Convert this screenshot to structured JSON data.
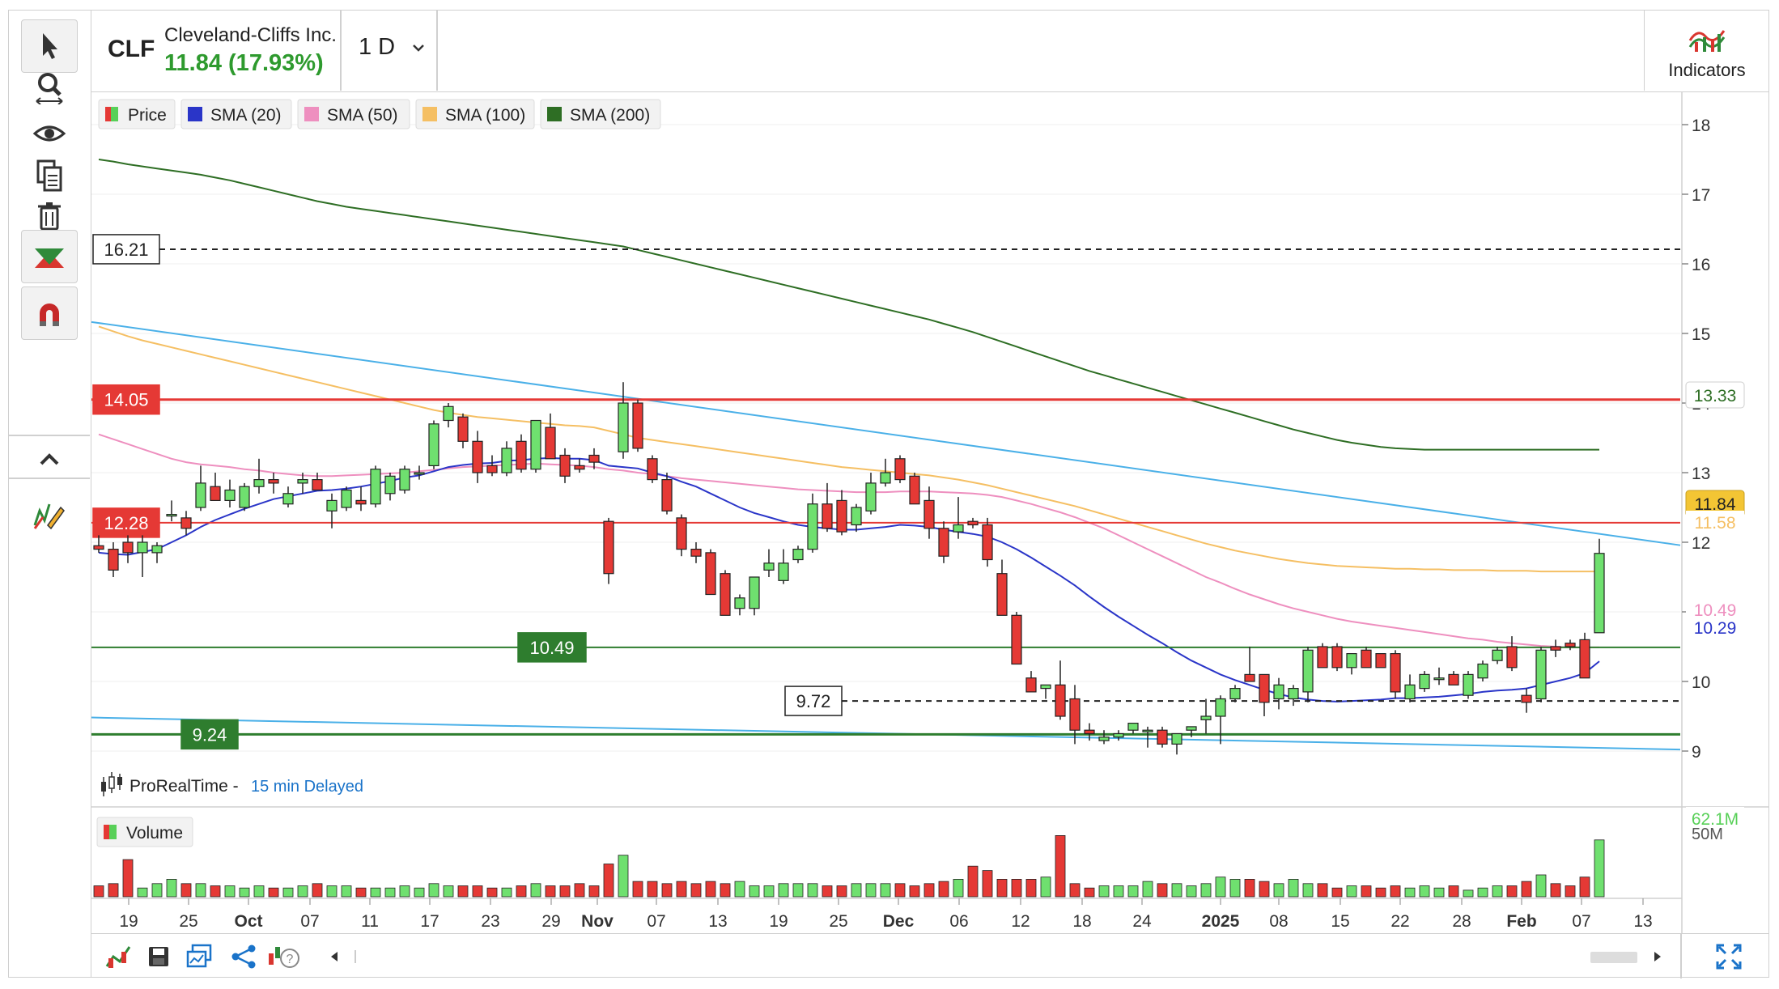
{
  "header": {
    "ticker": "CLF",
    "company": "Cleveland-Cliffs Inc.",
    "price_change": "11.84 (17.93%)",
    "interval": "1 D",
    "indicators_label": "Indicators"
  },
  "toolbar": {
    "icons": [
      "pointer-icon",
      "zoom-icon",
      "eye-icon",
      "copy-icon",
      "trash-icon",
      "drawing-tool-icon",
      "magnet-icon",
      "collapse-chevron-icon",
      "pencil-icon"
    ]
  },
  "bottom_bar": {
    "icons": [
      "chart-type-icon",
      "save-icon",
      "layout-icon",
      "share-icon",
      "help-icon",
      "scroll-left-icon",
      "scroll-right-icon",
      "fullscreen-icon"
    ]
  },
  "chart_data": {
    "type": "candlestick",
    "legend": [
      {
        "label": "Price",
        "color": "#e53935"
      },
      {
        "label": "SMA (20)",
        "color": "#2a35c8"
      },
      {
        "label": "SMA (50)",
        "color": "#ee8fbf"
      },
      {
        "label": "SMA (100)",
        "color": "#f5bf63"
      },
      {
        "label": "SMA (200)",
        "color": "#2e6e24"
      }
    ],
    "volume_label": "Volume",
    "source_label": "ProRealTime -",
    "delay_label": "15 min Delayed",
    "y_range": [
      8.5,
      18.5
    ],
    "y_ticks": [
      9,
      10,
      11,
      12,
      13,
      14,
      15,
      16,
      17,
      18
    ],
    "x_tick_labels": [
      "19",
      "25",
      "Oct",
      "07",
      "11",
      "17",
      "23",
      "29",
      "Nov",
      "07",
      "13",
      "19",
      "25",
      "Dec",
      "06",
      "12",
      "18",
      "24",
      "2025",
      "08",
      "15",
      "22",
      "28",
      "Feb",
      "07",
      "13"
    ],
    "right_axis_badges": [
      {
        "text": "13.33",
        "value": 13.33,
        "color": "#2e6e24",
        "style": "outline"
      },
      {
        "text": "11.84",
        "value": 11.84,
        "color": "#f3c534",
        "style": "fill"
      },
      {
        "text": "11.58",
        "value": 11.58,
        "color": "#f5bf63",
        "style": "text"
      },
      {
        "text": "10.49",
        "value": 10.49,
        "color": "#ee8fbf",
        "style": "text"
      },
      {
        "text": "10.29",
        "value": 10.29,
        "color": "#2a35c8",
        "style": "text"
      },
      {
        "text": "62.1M",
        "value": 62.1,
        "color": "#58d058",
        "style": "text"
      }
    ],
    "volume_axis_label": "50M",
    "levels": [
      {
        "value": 16.21,
        "label": "16.21",
        "style": "dashed",
        "color": "#222222"
      },
      {
        "value": 14.05,
        "label": "14.05",
        "style": "solid",
        "color": "#e53935"
      },
      {
        "value": 12.28,
        "label": "12.28",
        "style": "solid",
        "color": "#e53935"
      },
      {
        "value": 10.49,
        "label": "10.49",
        "style": "solid",
        "color": "#2e7d2e"
      },
      {
        "value": 9.72,
        "label": "9.72",
        "style": "dashed",
        "color": "#222222"
      },
      {
        "value": 9.24,
        "label": "9.24",
        "style": "solid",
        "color": "#2e7d2e"
      }
    ],
    "trendlines": [
      {
        "from": [
          0,
          15.15
        ],
        "to": [
          102,
          12.15
        ],
        "color": "#4ab0e8"
      },
      {
        "from": [
          0,
          9.48
        ],
        "to": [
          102,
          9.05
        ],
        "color": "#4ab0e8"
      }
    ],
    "candles": [
      [
        11.95,
        12.1,
        11.85,
        11.9
      ],
      [
        11.9,
        12.0,
        11.5,
        11.6
      ],
      [
        12.0,
        12.1,
        11.7,
        11.85
      ],
      [
        11.85,
        12.1,
        11.5,
        12.0
      ],
      [
        11.85,
        12.0,
        11.7,
        11.95
      ],
      [
        12.4,
        12.6,
        12.3,
        12.4
      ],
      [
        12.35,
        12.45,
        12.1,
        12.2
      ],
      [
        12.5,
        13.1,
        12.45,
        12.85
      ],
      [
        12.8,
        13.0,
        12.6,
        12.6
      ],
      [
        12.6,
        12.9,
        12.5,
        12.75
      ],
      [
        12.5,
        12.85,
        12.45,
        12.8
      ],
      [
        12.8,
        13.2,
        12.7,
        12.9
      ],
      [
        12.9,
        13.0,
        12.7,
        12.85
      ],
      [
        12.55,
        12.8,
        12.5,
        12.7
      ],
      [
        12.85,
        13.0,
        12.7,
        12.9
      ],
      [
        12.9,
        13.0,
        12.75,
        12.75
      ],
      [
        12.45,
        12.7,
        12.2,
        12.6
      ],
      [
        12.5,
        12.8,
        12.45,
        12.75
      ],
      [
        12.6,
        12.8,
        12.45,
        12.55
      ],
      [
        12.55,
        13.1,
        12.5,
        13.05
      ],
      [
        12.7,
        13.0,
        12.6,
        12.95
      ],
      [
        12.75,
        13.1,
        12.7,
        13.05
      ],
      [
        13.0,
        13.1,
        12.9,
        13.0
      ],
      [
        13.1,
        13.75,
        13.05,
        13.7
      ],
      [
        13.75,
        14.0,
        13.65,
        13.95
      ],
      [
        13.8,
        13.85,
        13.35,
        13.45
      ],
      [
        13.45,
        13.6,
        12.85,
        13.0
      ],
      [
        13.1,
        13.25,
        12.95,
        13.0
      ],
      [
        13.0,
        13.45,
        12.95,
        13.35
      ],
      [
        13.45,
        13.55,
        13.0,
        13.05
      ],
      [
        13.05,
        13.75,
        13.0,
        13.75
      ],
      [
        13.65,
        13.85,
        13.2,
        13.2
      ],
      [
        13.25,
        13.35,
        12.85,
        12.95
      ],
      [
        13.1,
        13.2,
        13.0,
        13.05
      ],
      [
        13.25,
        13.35,
        13.05,
        13.15
      ],
      [
        12.3,
        12.35,
        11.4,
        11.55
      ],
      [
        13.3,
        14.3,
        13.2,
        14.0
      ],
      [
        14.0,
        14.05,
        13.3,
        13.35
      ],
      [
        13.2,
        13.25,
        12.85,
        12.9
      ],
      [
        12.9,
        13.0,
        12.4,
        12.45
      ],
      [
        12.35,
        12.4,
        11.8,
        11.9
      ],
      [
        11.9,
        12.0,
        11.7,
        11.8
      ],
      [
        11.85,
        11.9,
        11.25,
        11.25
      ],
      [
        11.55,
        11.6,
        10.95,
        10.95
      ],
      [
        11.05,
        11.25,
        10.95,
        11.2
      ],
      [
        11.05,
        11.5,
        10.95,
        11.5
      ],
      [
        11.6,
        11.9,
        11.5,
        11.7
      ],
      [
        11.45,
        11.9,
        11.4,
        11.7
      ],
      [
        11.75,
        11.95,
        11.7,
        11.9
      ],
      [
        11.9,
        12.7,
        11.85,
        12.55
      ],
      [
        12.55,
        12.85,
        12.15,
        12.2
      ],
      [
        12.6,
        12.75,
        12.1,
        12.15
      ],
      [
        12.25,
        12.55,
        12.15,
        12.5
      ],
      [
        12.45,
        13.0,
        12.4,
        12.85
      ],
      [
        12.85,
        13.2,
        12.8,
        13.0
      ],
      [
        13.2,
        13.25,
        12.85,
        12.9
      ],
      [
        12.95,
        13.0,
        12.55,
        12.55
      ],
      [
        12.6,
        12.8,
        12.05,
        12.2
      ],
      [
        12.2,
        12.3,
        11.7,
        11.8
      ],
      [
        12.15,
        12.65,
        12.05,
        12.25
      ],
      [
        12.3,
        12.35,
        12.2,
        12.25
      ],
      [
        12.25,
        12.35,
        11.65,
        11.75
      ],
      [
        11.55,
        11.75,
        10.95,
        10.95
      ],
      [
        10.95,
        11.0,
        10.25,
        10.25
      ],
      [
        10.05,
        10.15,
        9.9,
        9.85
      ],
      [
        9.9,
        9.95,
        9.75,
        9.95
      ],
      [
        9.95,
        10.3,
        9.45,
        9.5
      ],
      [
        9.75,
        9.95,
        9.1,
        9.3
      ],
      [
        9.3,
        9.4,
        9.15,
        9.25
      ],
      [
        9.15,
        9.3,
        9.1,
        9.2
      ],
      [
        9.2,
        9.3,
        9.15,
        9.25
      ],
      [
        9.3,
        9.4,
        9.25,
        9.4
      ],
      [
        9.3,
        9.35,
        9.05,
        9.3
      ],
      [
        9.3,
        9.35,
        9.05,
        9.1
      ],
      [
        9.1,
        9.25,
        8.95,
        9.25
      ],
      [
        9.3,
        9.35,
        9.2,
        9.35
      ],
      [
        9.45,
        9.75,
        9.25,
        9.5
      ],
      [
        9.5,
        9.8,
        9.1,
        9.75
      ],
      [
        9.75,
        9.95,
        9.7,
        9.9
      ],
      [
        10.1,
        10.5,
        10.05,
        10.0
      ],
      [
        10.1,
        10.1,
        9.5,
        9.7
      ],
      [
        9.75,
        10.05,
        9.6,
        9.95
      ],
      [
        9.75,
        9.95,
        9.65,
        9.9
      ],
      [
        9.85,
        10.5,
        9.7,
        10.45
      ],
      [
        10.5,
        10.55,
        10.2,
        10.2
      ],
      [
        10.5,
        10.55,
        10.15,
        10.2
      ],
      [
        10.2,
        10.4,
        10.1,
        10.4
      ],
      [
        10.45,
        10.5,
        10.2,
        10.2
      ],
      [
        10.4,
        10.4,
        10.2,
        10.2
      ],
      [
        10.4,
        10.45,
        9.75,
        9.85
      ],
      [
        9.75,
        10.1,
        9.7,
        9.95
      ],
      [
        9.9,
        10.15,
        9.85,
        10.1
      ],
      [
        10.05,
        10.2,
        9.95,
        10.05
      ],
      [
        10.1,
        10.15,
        9.95,
        9.95
      ],
      [
        9.8,
        10.15,
        9.75,
        10.1
      ],
      [
        10.05,
        10.3,
        10.0,
        10.25
      ],
      [
        10.3,
        10.5,
        10.25,
        10.45
      ],
      [
        10.5,
        10.65,
        10.15,
        10.2
      ],
      [
        9.8,
        9.9,
        9.55,
        9.7
      ],
      [
        9.75,
        10.5,
        9.7,
        10.45
      ],
      [
        10.5,
        10.6,
        10.35,
        10.45
      ],
      [
        10.55,
        10.6,
        10.45,
        10.5
      ],
      [
        10.6,
        10.7,
        10.1,
        10.05
      ],
      [
        10.7,
        12.05,
        10.7,
        11.84
      ]
    ],
    "volumes": [
      5,
      6,
      17,
      4,
      6,
      8,
      6,
      6,
      5,
      5,
      4,
      5,
      4,
      4,
      5,
      6,
      5,
      5,
      4,
      4,
      4,
      5,
      4,
      6,
      5,
      5,
      5,
      4,
      4,
      5,
      6,
      5,
      5,
      6,
      5,
      15,
      19,
      7,
      7,
      6,
      7,
      6,
      7,
      6,
      7,
      5,
      5,
      6,
      6,
      6,
      5,
      5,
      6,
      6,
      6,
      6,
      5,
      6,
      7,
      8,
      14,
      12,
      8,
      8,
      8,
      9,
      28,
      6,
      4,
      5,
      5,
      5,
      7,
      6,
      6,
      5,
      6,
      9,
      8,
      8,
      7,
      6,
      8,
      6,
      6,
      4,
      5,
      5,
      4,
      5,
      4,
      5,
      4,
      5,
      3,
      4,
      5,
      5,
      7,
      10,
      6,
      5,
      9,
      26
    ],
    "sma20": [
      11.85,
      11.83,
      11.82,
      11.86,
      11.9,
      12.0,
      12.1,
      12.22,
      12.32,
      12.4,
      12.48,
      12.55,
      12.62,
      12.66,
      12.7,
      12.74,
      12.75,
      12.77,
      12.8,
      12.84,
      12.88,
      12.93,
      12.96,
      13.02,
      13.08,
      13.11,
      13.13,
      13.14,
      13.17,
      13.18,
      13.2,
      13.21,
      13.2,
      13.2,
      13.18,
      13.1,
      13.08,
      13.06,
      13.0,
      12.95,
      12.87,
      12.8,
      12.7,
      12.6,
      12.5,
      12.42,
      12.36,
      12.3,
      12.25,
      12.22,
      12.2,
      12.18,
      12.18,
      12.2,
      12.22,
      12.25,
      12.24,
      12.22,
      12.18,
      12.15,
      12.12,
      12.08,
      12.0,
      11.9,
      11.78,
      11.65,
      11.52,
      11.38,
      11.22,
      11.07,
      10.93,
      10.8,
      10.67,
      10.55,
      10.42,
      10.3,
      10.2,
      10.1,
      10.02,
      9.95,
      9.88,
      9.82,
      9.77,
      9.74,
      9.72,
      9.71,
      9.72,
      9.73,
      9.74,
      9.76,
      9.76,
      9.77,
      9.78,
      9.8,
      9.82,
      9.85,
      9.87,
      9.88,
      9.9,
      9.95,
      10.0,
      10.05,
      10.12,
      10.29
    ],
    "sma50": [
      13.55,
      13.48,
      13.41,
      13.34,
      13.27,
      13.2,
      13.15,
      13.12,
      13.1,
      13.08,
      13.05,
      13.03,
      13.0,
      12.98,
      12.96,
      12.95,
      12.95,
      12.96,
      12.97,
      12.98,
      12.99,
      13.0,
      13.02,
      13.04,
      13.06,
      13.08,
      13.09,
      13.1,
      13.11,
      13.12,
      13.13,
      13.12,
      13.11,
      13.1,
      13.08,
      13.05,
      13.03,
      13.0,
      12.98,
      12.95,
      12.92,
      12.9,
      12.88,
      12.86,
      12.84,
      12.82,
      12.8,
      12.78,
      12.76,
      12.75,
      12.74,
      12.73,
      12.72,
      12.72,
      12.72,
      12.73,
      12.73,
      12.73,
      12.72,
      12.71,
      12.7,
      12.68,
      12.65,
      12.6,
      12.55,
      12.49,
      12.43,
      12.36,
      12.28,
      12.2,
      12.1,
      12.0,
      11.9,
      11.8,
      11.7,
      11.6,
      11.5,
      11.42,
      11.33,
      11.25,
      11.18,
      11.11,
      11.05,
      11.0,
      10.95,
      10.9,
      10.86,
      10.83,
      10.8,
      10.77,
      10.74,
      10.71,
      10.68,
      10.65,
      10.62,
      10.6,
      10.57,
      10.55,
      10.53,
      10.51,
      10.5,
      10.49,
      10.49,
      10.49
    ],
    "sma100": [
      15.1,
      15.03,
      14.96,
      14.9,
      14.85,
      14.8,
      14.75,
      14.7,
      14.65,
      14.6,
      14.55,
      14.5,
      14.45,
      14.4,
      14.35,
      14.3,
      14.25,
      14.2,
      14.15,
      14.1,
      14.05,
      14.0,
      13.95,
      13.9,
      13.86,
      13.83,
      13.8,
      13.78,
      13.76,
      13.74,
      13.72,
      13.7,
      13.68,
      13.67,
      13.65,
      13.6,
      13.55,
      13.5,
      13.47,
      13.44,
      13.41,
      13.38,
      13.35,
      13.32,
      13.29,
      13.26,
      13.23,
      13.2,
      13.17,
      13.14,
      13.11,
      13.08,
      13.06,
      13.04,
      13.02,
      13.0,
      12.98,
      12.96,
      12.93,
      12.9,
      12.86,
      12.82,
      12.77,
      12.72,
      12.67,
      12.62,
      12.57,
      12.52,
      12.46,
      12.4,
      12.34,
      12.28,
      12.22,
      12.16,
      12.1,
      12.04,
      11.98,
      11.93,
      11.88,
      11.84,
      11.8,
      11.76,
      11.73,
      11.7,
      11.68,
      11.66,
      11.65,
      11.64,
      11.63,
      11.62,
      11.62,
      11.61,
      11.61,
      11.6,
      11.6,
      11.6,
      11.59,
      11.59,
      11.59,
      11.58,
      11.58,
      11.58,
      11.58,
      11.58
    ],
    "sma200": [
      17.5,
      17.47,
      17.43,
      17.4,
      17.37,
      17.34,
      17.31,
      17.28,
      17.24,
      17.2,
      17.15,
      17.1,
      17.05,
      17.0,
      16.95,
      16.9,
      16.86,
      16.82,
      16.79,
      16.76,
      16.73,
      16.7,
      16.67,
      16.64,
      16.61,
      16.58,
      16.55,
      16.52,
      16.49,
      16.46,
      16.43,
      16.4,
      16.37,
      16.34,
      16.31,
      16.28,
      16.25,
      16.2,
      16.15,
      16.1,
      16.05,
      16.0,
      15.95,
      15.9,
      15.85,
      15.8,
      15.75,
      15.7,
      15.65,
      15.6,
      15.55,
      15.5,
      15.45,
      15.4,
      15.35,
      15.3,
      15.25,
      15.2,
      15.14,
      15.08,
      15.02,
      14.95,
      14.88,
      14.81,
      14.74,
      14.67,
      14.6,
      14.53,
      14.46,
      14.4,
      14.34,
      14.28,
      14.22,
      14.16,
      14.1,
      14.04,
      13.98,
      13.92,
      13.86,
      13.8,
      13.74,
      13.68,
      13.62,
      13.57,
      13.52,
      13.47,
      13.43,
      13.4,
      13.37,
      13.35,
      13.34,
      13.33,
      13.33,
      13.33,
      13.33,
      13.33,
      13.33,
      13.33,
      13.33,
      13.33,
      13.33,
      13.33,
      13.33,
      13.33
    ]
  }
}
